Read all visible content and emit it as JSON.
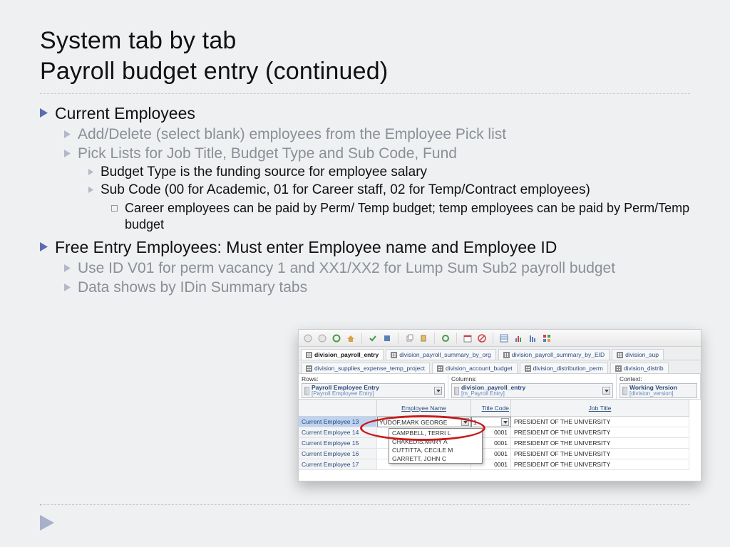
{
  "title_line1": "System tab by tab",
  "title_line2": "Payroll budget entry (continued)",
  "bullet_colors": {
    "l0": "#5b6db1",
    "l1": "#b3b8c9",
    "l2": "#b3b8c9",
    "square": "#8f95a6",
    "nav": "#a9b0cc"
  },
  "bullets": {
    "b1": "Current Employees",
    "b1a": "Add/Delete (select blank) employees from the Employee Pick list",
    "b1b": "Pick Lists for Job Title, Budget Type and Sub Code, Fund",
    "b1b1": "Budget Type is the funding source for employee salary",
    "b1b2": "Sub Code (00 for Academic, 01 for Career staff, 02 for Temp/Contract employees)",
    "b1b2a": "Career employees can be paid by Perm/ Temp budget; temp employees can be paid by Perm/Temp budget",
    "b2": "Free Entry Employees: Must enter Employee name and Employee ID",
    "b2a": "Use ID V01 for perm vacancy 1 and XX1/XX2 for Lump Sum Sub2 payroll budget",
    "b2b": "Data shows by IDin Summary tabs"
  },
  "app": {
    "tabs_row1": [
      "division_payroll_entry",
      "division_payroll_summary_by_org",
      "division_payroll_summary_by_EID",
      "division_sup"
    ],
    "tabs_row2": [
      "division_supplies_expense_temp_project",
      "division_account_budget",
      "division_distribution_perm",
      "division_distrib"
    ],
    "active_tab_index": 0,
    "panel": {
      "rows_label": "Rows:",
      "rows_line1": "Payroll Employee Entry",
      "rows_line2": "[Payroll Employee Entry]",
      "cols_label": "Columns:",
      "cols_line1": "division_payroll_entry",
      "cols_line2": "[m_Payroll Entry]",
      "ctx_label": "Context:",
      "ctx_line1": "Working Version",
      "ctx_line2": "[division_version]"
    },
    "grid": {
      "headers": [
        "",
        "Employee Name",
        "Title Code",
        "Job Title"
      ],
      "rows": [
        {
          "label": "Current Employee 13",
          "name": "YUDOF,MARK GEORGE",
          "title": "1",
          "job": "PRESIDENT OF THE UNIVERSITY",
          "selected": true,
          "editing": true
        },
        {
          "label": "Current Employee 14",
          "name": "",
          "title": "0001",
          "job": "PRESIDENT OF THE UNIVERSITY"
        },
        {
          "label": "Current Employee 15",
          "name": "",
          "title": "0001",
          "job": "PRESIDENT OF THE UNIVERSITY"
        },
        {
          "label": "Current Employee 16",
          "name": "",
          "title": "0001",
          "job": "PRESIDENT OF THE UNIVERSITY"
        },
        {
          "label": "Current Employee 17",
          "name": "",
          "title": "0001",
          "job": "PRESIDENT OF THE UNIVERSITY"
        }
      ],
      "dropdown_options": [
        "CAMPBELL, TERRI L",
        "CHAKEDIS,MARY A",
        "CUTTITTA, CECILE M",
        "GARRETT, JOHN C"
      ]
    }
  }
}
